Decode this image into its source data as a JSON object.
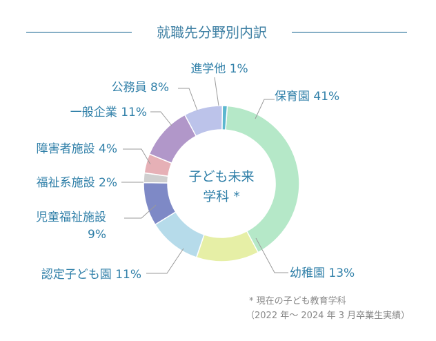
{
  "chart_data": {
    "type": "pie",
    "title": "就職先分野別内訳",
    "center_label": [
      "子ども未来",
      "学科 *"
    ],
    "slices": [
      {
        "name": "保育園",
        "value": 41,
        "color": "#b5e8c8"
      },
      {
        "name": "幼稚園",
        "value": 13,
        "color": "#e6efa6"
      },
      {
        "name": "認定子ども園",
        "value": 11,
        "color": "#b6dbea"
      },
      {
        "name": "児童福祉施設",
        "value": 9,
        "color": "#7e89c6"
      },
      {
        "name": "福祉系施設",
        "value": 2,
        "color": "#cfcfcf"
      },
      {
        "name": "障害者施設",
        "value": 4,
        "color": "#e6b0b6"
      },
      {
        "name": "一般企業",
        "value": 11,
        "color": "#b197c9"
      },
      {
        "name": "公務員",
        "value": 8,
        "color": "#bcc3ea"
      },
      {
        "name": "進学他",
        "value": 1,
        "color": "#5bb7cf"
      }
    ],
    "slice_labels": [
      [
        "保育園 41%"
      ],
      [
        "幼稚園 13%"
      ],
      [
        "認定子ども園 11%"
      ],
      [
        "児童福祉施設",
        "9%"
      ],
      [
        "福祉系施設 2%"
      ],
      [
        "障害者施設 4%"
      ],
      [
        "一般企業 11%"
      ],
      [
        "公務員 8%"
      ],
      [
        "進学他 1%"
      ]
    ],
    "footnote": [
      "* 現在の子ども教育学科",
      "（2022 年〜 2024 年 3 月卒業生実績）"
    ]
  }
}
